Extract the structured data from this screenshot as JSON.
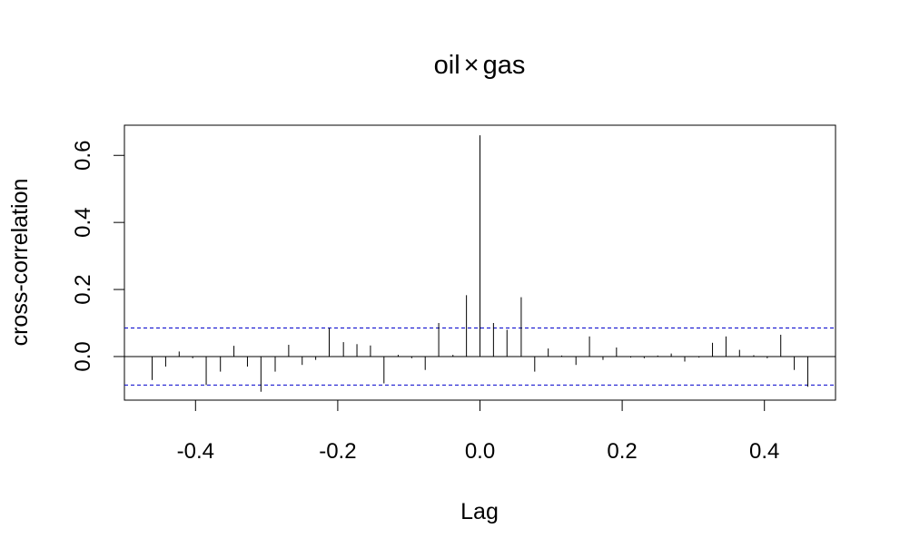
{
  "chart_data": {
    "type": "bar",
    "title_left": "oil",
    "title_symbol": "×",
    "title_right": "gas",
    "xlabel": "Lag",
    "ylabel": "cross-correlation",
    "xlim": [
      -0.5,
      0.5
    ],
    "ylim": [
      -0.13,
      0.69
    ],
    "xticks": [
      -0.4,
      -0.2,
      0.0,
      0.2,
      0.4
    ],
    "xtick_labels": [
      "-0.4",
      "-0.2",
      "0.0",
      "0.2",
      "0.4"
    ],
    "yticks": [
      0.0,
      0.2,
      0.4,
      0.6
    ],
    "ytick_labels": [
      "0.0",
      "0.2",
      "0.4",
      "0.6"
    ],
    "confidence_band": [
      -0.085,
      0.085
    ],
    "grid": false,
    "lags": [
      -0.461,
      -0.442,
      -0.423,
      -0.404,
      -0.385,
      -0.365,
      -0.346,
      -0.327,
      -0.308,
      -0.288,
      -0.269,
      -0.25,
      -0.231,
      -0.212,
      -0.192,
      -0.173,
      -0.154,
      -0.135,
      -0.115,
      -0.096,
      -0.077,
      -0.058,
      -0.038,
      -0.019,
      0.0,
      0.019,
      0.038,
      0.058,
      0.077,
      0.096,
      0.115,
      0.135,
      0.154,
      0.173,
      0.192,
      0.212,
      0.231,
      0.25,
      0.269,
      0.288,
      0.308,
      0.327,
      0.346,
      0.365,
      0.385,
      0.404,
      0.423,
      0.442,
      0.461
    ],
    "values": [
      -0.07,
      -0.03,
      0.015,
      -0.005,
      -0.085,
      -0.045,
      0.032,
      -0.03,
      -0.105,
      -0.045,
      0.035,
      -0.025,
      -0.01,
      0.085,
      0.043,
      0.037,
      0.033,
      -0.08,
      0.005,
      -0.005,
      -0.04,
      0.1,
      0.005,
      0.183,
      0.66,
      0.1,
      0.08,
      0.177,
      -0.045,
      0.024,
      0.003,
      -0.025,
      0.06,
      -0.01,
      0.027,
      -0.003,
      -0.005,
      0.003,
      0.009,
      -0.015,
      -0.003,
      0.041,
      0.06,
      0.02,
      0.004,
      -0.005,
      0.065,
      -0.04,
      -0.09
    ]
  }
}
